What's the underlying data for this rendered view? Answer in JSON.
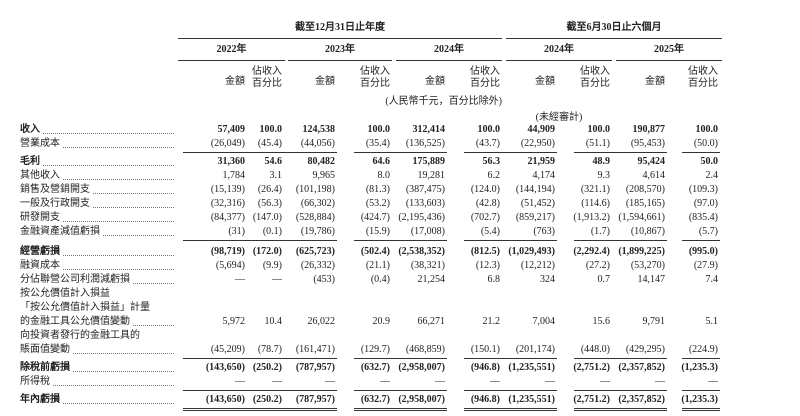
{
  "header": {
    "period_groups": [
      {
        "label": "截至12月31日止年度",
        "span": 3
      },
      {
        "label": "截至6月30日止六個月",
        "span": 2
      }
    ],
    "years": [
      "2022年",
      "2023年",
      "2024年",
      "2024年",
      "2025年"
    ],
    "amount": "金額",
    "pct": [
      "佔收入",
      "百分比"
    ],
    "unit_note": "(人民幣千元，百分比除外)",
    "unaudited": "(未經審計)"
  },
  "rows": [
    {
      "label": [
        "收入"
      ],
      "bold": true,
      "values": [
        "57,409",
        "100.0",
        "124,538",
        "100.0",
        "312,414",
        "100.0",
        "44,909",
        "100.0",
        "190,877",
        "100.0"
      ]
    },
    {
      "label": [
        "營業成本"
      ],
      "values": [
        "(26,049)",
        "(45.4)",
        "(44,056)",
        "(35.4)",
        "(136,525)",
        "(43.7)",
        "(22,950)",
        "(51.1)",
        "(95,453)",
        "(50.0)"
      ]
    },
    {
      "label": [
        "毛利"
      ],
      "bold": true,
      "values": [
        "31,360",
        "54.6",
        "80,482",
        "64.6",
        "175,889",
        "56.3",
        "21,959",
        "48.9",
        "95,424",
        "50.0"
      ]
    },
    {
      "label": [
        "其他收入"
      ],
      "values": [
        "1,784",
        "3.1",
        "9,965",
        "8.0",
        "19,281",
        "6.2",
        "4,174",
        "9.3",
        "4,614",
        "2.4"
      ]
    },
    {
      "label": [
        "銷售及營銷開支"
      ],
      "values": [
        "(15,139)",
        "(26.4)",
        "(101,198)",
        "(81.3)",
        "(387,475)",
        "(124.0)",
        "(144,194)",
        "(321.1)",
        "(208,570)",
        "(109.3)"
      ]
    },
    {
      "label": [
        "一般及行政開支"
      ],
      "values": [
        "(32,316)",
        "(56.3)",
        "(66,302)",
        "(53.2)",
        "(133,603)",
        "(42.8)",
        "(51,452)",
        "(114.6)",
        "(185,165)",
        "(97.0)"
      ]
    },
    {
      "label": [
        "研發開支"
      ],
      "values": [
        "(84,377)",
        "(147.0)",
        "(528,884)",
        "(424.7)",
        "(2,195,436)",
        "(702.7)",
        "(859,217)",
        "(1,913.2)",
        "(1,594,661)",
        "(835.4)"
      ]
    },
    {
      "label": [
        "金融資產減值虧損"
      ],
      "values": [
        "(31)",
        "(0.1)",
        "(19,786)",
        "(15.9)",
        "(17,008)",
        "(5.4)",
        "(763)",
        "(1.7)",
        "(10,867)",
        "(5.7)"
      ]
    },
    {
      "label": [
        "經營虧損"
      ],
      "bold": true,
      "values": [
        "(98,719)",
        "(172.0)",
        "(625,723)",
        "(502.4)",
        "(2,538,352)",
        "(812.5)",
        "(1,029,493)",
        "(2,292.4)",
        "(1,899,225)",
        "(995.0)"
      ]
    },
    {
      "label": [
        "融資成本"
      ],
      "values": [
        "(5,694)",
        "(9.9)",
        "(26,332)",
        "(21.1)",
        "(38,321)",
        "(12.3)",
        "(12,212)",
        "(27.2)",
        "(53,270)",
        "(27.9)"
      ]
    },
    {
      "label": [
        "分佔聯營公司利潤減虧損"
      ],
      "values": [
        "—",
        "—",
        "(453)",
        "(0.4)",
        "21,254",
        "6.8",
        "324",
        "0.7",
        "14,147",
        "7.4"
      ]
    },
    {
      "label": [
        "按公允價值計入損益",
        "「按公允價值計入損益」計量",
        "的金融工具公允價值變動"
      ],
      "values": [
        "5,972",
        "10.4",
        "26,022",
        "20.9",
        "66,271",
        "21.2",
        "7,004",
        "15.6",
        "9,791",
        "5.1"
      ]
    },
    {
      "label": [
        "向投資者發行的金融工具的",
        "賬面值變動"
      ],
      "values": [
        "(45,209)",
        "(78.7)",
        "(161,471)",
        "(129.7)",
        "(468,859)",
        "(150.1)",
        "(201,174)",
        "(448.0)",
        "(429,295)",
        "(224.9)"
      ]
    },
    {
      "label": [
        "除稅前虧損"
      ],
      "bold": true,
      "values": [
        "(143,650)",
        "(250.2)",
        "(787,957)",
        "(632.7)",
        "(2,958,007)",
        "(946.8)",
        "(1,235,551)",
        "(2,751.2)",
        "(2,357,852)",
        "(1,235.3)"
      ]
    },
    {
      "label": [
        "所得稅"
      ],
      "values": [
        "—",
        "—",
        "—",
        "—",
        "—",
        "—",
        "—",
        "—",
        "—",
        "—"
      ]
    },
    {
      "label": [
        "年內虧損"
      ],
      "bold": true,
      "values": [
        "(143,650)",
        "(250.2)",
        "(787,957)",
        "(632.7)",
        "(2,958,007)",
        "(946.8)",
        "(1,235,551)",
        "(2,751.2)",
        "(2,357,852)",
        "(1,235.3)"
      ]
    }
  ]
}
